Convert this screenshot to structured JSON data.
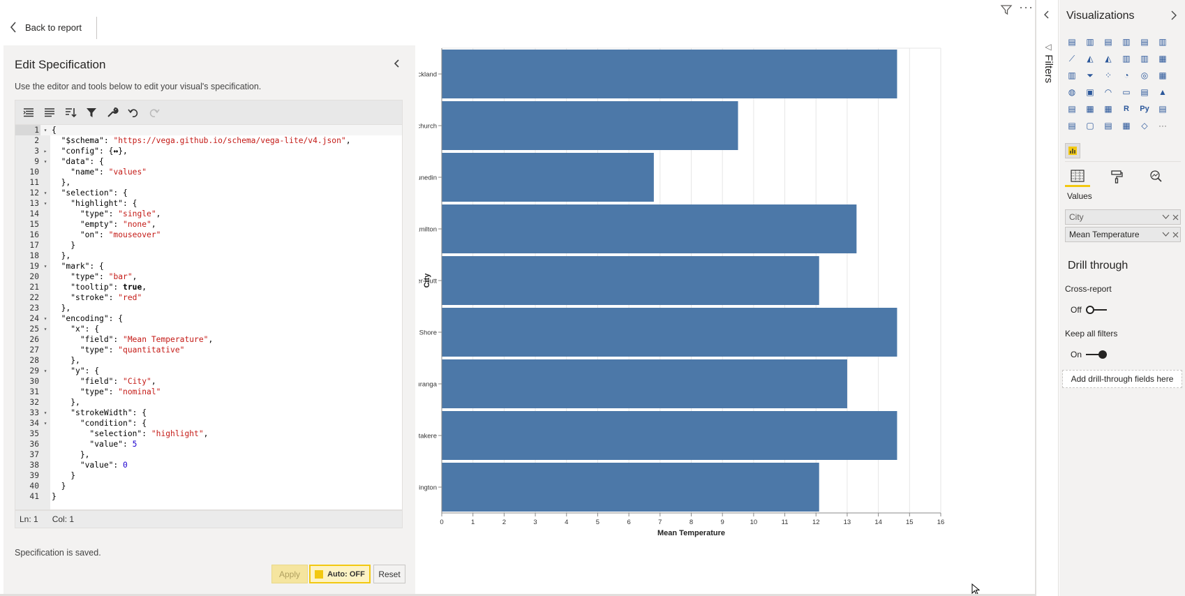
{
  "top_bar": {
    "back_label": "Back to report"
  },
  "editor": {
    "title": "Edit Specification",
    "description": "Use the editor and tools below to edit your visual's specification.",
    "lines": [
      {
        "n": "1",
        "fold": "▾",
        "indent": 0,
        "tokens": [
          {
            "t": "k",
            "v": "{"
          }
        ]
      },
      {
        "n": "2",
        "fold": "",
        "indent": 1,
        "tokens": [
          {
            "t": "k",
            "v": "\"$schema\": "
          },
          {
            "t": "s",
            "v": "\"https://vega.github.io/schema/vega-lite/v4.json\""
          },
          {
            "t": "k",
            "v": ","
          }
        ]
      },
      {
        "n": "3",
        "fold": "▸",
        "indent": 1,
        "tokens": [
          {
            "t": "k",
            "v": "\"config\": {"
          },
          {
            "t": "b",
            "v": "↔"
          },
          {
            "t": "k",
            "v": "},"
          }
        ]
      },
      {
        "n": "9",
        "fold": "▾",
        "indent": 1,
        "tokens": [
          {
            "t": "k",
            "v": "\"data\": {"
          }
        ]
      },
      {
        "n": "10",
        "fold": "",
        "indent": 2,
        "tokens": [
          {
            "t": "k",
            "v": "\"name\": "
          },
          {
            "t": "s",
            "v": "\"values\""
          }
        ]
      },
      {
        "n": "11",
        "fold": "",
        "indent": 1,
        "tokens": [
          {
            "t": "k",
            "v": "},"
          }
        ]
      },
      {
        "n": "12",
        "fold": "▾",
        "indent": 1,
        "tokens": [
          {
            "t": "k",
            "v": "\"selection\": {"
          }
        ]
      },
      {
        "n": "13",
        "fold": "▾",
        "indent": 2,
        "tokens": [
          {
            "t": "k",
            "v": "\"highlight\": {"
          }
        ]
      },
      {
        "n": "14",
        "fold": "",
        "indent": 3,
        "tokens": [
          {
            "t": "k",
            "v": "\"type\": "
          },
          {
            "t": "s",
            "v": "\"single\""
          },
          {
            "t": "k",
            "v": ","
          }
        ]
      },
      {
        "n": "15",
        "fold": "",
        "indent": 3,
        "tokens": [
          {
            "t": "k",
            "v": "\"empty\": "
          },
          {
            "t": "s",
            "v": "\"none\""
          },
          {
            "t": "k",
            "v": ","
          }
        ]
      },
      {
        "n": "16",
        "fold": "",
        "indent": 3,
        "tokens": [
          {
            "t": "k",
            "v": "\"on\": "
          },
          {
            "t": "s",
            "v": "\"mouseover\""
          }
        ]
      },
      {
        "n": "17",
        "fold": "",
        "indent": 2,
        "tokens": [
          {
            "t": "k",
            "v": "}"
          }
        ]
      },
      {
        "n": "18",
        "fold": "",
        "indent": 1,
        "tokens": [
          {
            "t": "k",
            "v": "},"
          }
        ]
      },
      {
        "n": "19",
        "fold": "▾",
        "indent": 1,
        "tokens": [
          {
            "t": "k",
            "v": "\"mark\": {"
          }
        ]
      },
      {
        "n": "20",
        "fold": "",
        "indent": 2,
        "tokens": [
          {
            "t": "k",
            "v": "\"type\": "
          },
          {
            "t": "s",
            "v": "\"bar\""
          },
          {
            "t": "k",
            "v": ","
          }
        ]
      },
      {
        "n": "21",
        "fold": "",
        "indent": 2,
        "tokens": [
          {
            "t": "k",
            "v": "\"tooltip\": "
          },
          {
            "t": "b",
            "v": "true"
          },
          {
            "t": "k",
            "v": ","
          }
        ]
      },
      {
        "n": "22",
        "fold": "",
        "indent": 2,
        "tokens": [
          {
            "t": "k",
            "v": "\"stroke\": "
          },
          {
            "t": "s",
            "v": "\"red\""
          }
        ]
      },
      {
        "n": "23",
        "fold": "",
        "indent": 1,
        "tokens": [
          {
            "t": "k",
            "v": "},"
          }
        ]
      },
      {
        "n": "24",
        "fold": "▾",
        "indent": 1,
        "tokens": [
          {
            "t": "k",
            "v": "\"encoding\": {"
          }
        ]
      },
      {
        "n": "25",
        "fold": "▾",
        "indent": 2,
        "tokens": [
          {
            "t": "k",
            "v": "\"x\": {"
          }
        ]
      },
      {
        "n": "26",
        "fold": "",
        "indent": 3,
        "tokens": [
          {
            "t": "k",
            "v": "\"field\": "
          },
          {
            "t": "s",
            "v": "\"Mean Temperature\""
          },
          {
            "t": "k",
            "v": ","
          }
        ]
      },
      {
        "n": "27",
        "fold": "",
        "indent": 3,
        "tokens": [
          {
            "t": "k",
            "v": "\"type\": "
          },
          {
            "t": "s",
            "v": "\"quantitative\""
          }
        ]
      },
      {
        "n": "28",
        "fold": "",
        "indent": 2,
        "tokens": [
          {
            "t": "k",
            "v": "},"
          }
        ]
      },
      {
        "n": "29",
        "fold": "▾",
        "indent": 2,
        "tokens": [
          {
            "t": "k",
            "v": "\"y\": {"
          }
        ]
      },
      {
        "n": "30",
        "fold": "",
        "indent": 3,
        "tokens": [
          {
            "t": "k",
            "v": "\"field\": "
          },
          {
            "t": "s",
            "v": "\"City\""
          },
          {
            "t": "k",
            "v": ","
          }
        ]
      },
      {
        "n": "31",
        "fold": "",
        "indent": 3,
        "tokens": [
          {
            "t": "k",
            "v": "\"type\": "
          },
          {
            "t": "s",
            "v": "\"nominal\""
          }
        ]
      },
      {
        "n": "32",
        "fold": "",
        "indent": 2,
        "tokens": [
          {
            "t": "k",
            "v": "},"
          }
        ]
      },
      {
        "n": "33",
        "fold": "▾",
        "indent": 2,
        "tokens": [
          {
            "t": "k",
            "v": "\"strokeWidth\": {"
          }
        ]
      },
      {
        "n": "34",
        "fold": "▾",
        "indent": 3,
        "tokens": [
          {
            "t": "k",
            "v": "\"condition\": {"
          }
        ]
      },
      {
        "n": "35",
        "fold": "",
        "indent": 4,
        "tokens": [
          {
            "t": "k",
            "v": "\"selection\": "
          },
          {
            "t": "s",
            "v": "\"highlight\""
          },
          {
            "t": "k",
            "v": ","
          }
        ]
      },
      {
        "n": "36",
        "fold": "",
        "indent": 4,
        "tokens": [
          {
            "t": "k",
            "v": "\"value\": "
          },
          {
            "t": "n",
            "v": "5"
          }
        ]
      },
      {
        "n": "37",
        "fold": "",
        "indent": 3,
        "tokens": [
          {
            "t": "k",
            "v": "},"
          }
        ]
      },
      {
        "n": "38",
        "fold": "",
        "indent": 3,
        "tokens": [
          {
            "t": "k",
            "v": "\"value\": "
          },
          {
            "t": "n",
            "v": "0"
          }
        ]
      },
      {
        "n": "39",
        "fold": "",
        "indent": 2,
        "tokens": [
          {
            "t": "k",
            "v": "}"
          }
        ]
      },
      {
        "n": "40",
        "fold": "",
        "indent": 1,
        "tokens": [
          {
            "t": "k",
            "v": "}"
          }
        ]
      },
      {
        "n": "41",
        "fold": "",
        "indent": 0,
        "tokens": [
          {
            "t": "k",
            "v": "}"
          }
        ]
      }
    ],
    "status": {
      "ln": "Ln: 1",
      "col": "Col: 1"
    },
    "saved_message": "Specification is saved.",
    "buttons": {
      "apply": "Apply",
      "auto": "Auto: OFF",
      "reset": "Reset"
    }
  },
  "chart_data": {
    "type": "bar",
    "orientation": "horizontal",
    "categories": [
      "Auckland",
      "Christchurch",
      "Dunedin",
      "Hamilton",
      "Lower Hutt",
      "North Shore",
      "Tauranga",
      "Waitakere",
      "Wellington"
    ],
    "values": [
      14.6,
      9.5,
      6.8,
      13.3,
      12.1,
      14.6,
      13.0,
      14.6,
      12.1
    ],
    "xlabel": "Mean Temperature",
    "ylabel": "City",
    "xlim": [
      0,
      16
    ],
    "xticks": [
      "0",
      "1",
      "2",
      "3",
      "4",
      "5",
      "6",
      "7",
      "8",
      "9",
      "10",
      "11",
      "12",
      "13",
      "14",
      "15",
      "16"
    ],
    "grid": true,
    "bar_color": "#4c78a8"
  },
  "filters": {
    "label": "Filters"
  },
  "viz_pane": {
    "title": "Visualizations",
    "values_label": "Values",
    "fields": [
      "City",
      "Mean Temperature"
    ],
    "drill_title": "Drill through",
    "cross_report_label": "Cross-report",
    "cross_report_state": "Off",
    "keep_filters_label": "Keep all filters",
    "keep_filters_state": "On",
    "drop_zone": "Add drill-through fields here",
    "icons": [
      "stacked-bar-icon",
      "stacked-column-icon",
      "clustered-bar-icon",
      "clustered-column-icon",
      "100-bar-icon",
      "100-column-icon",
      "line-icon",
      "area-icon",
      "stacked-area-icon",
      "line-column-icon",
      "line-clustered-icon",
      "ribbon-icon",
      "waterfall-icon",
      "funnel-icon",
      "scatter-icon",
      "pie-icon",
      "donut-icon",
      "treemap-icon",
      "map-icon",
      "filled-map-icon",
      "gauge-icon",
      "card-icon",
      "multi-card-icon",
      "kpi-icon",
      "slicer-icon",
      "table-icon",
      "matrix-icon",
      "r-visual-icon",
      "python-visual-icon",
      "key-influencers-icon",
      "decomposition-icon",
      "qa-icon",
      "narrative-icon",
      "paginated-icon",
      "power-apps-icon",
      "more-visuals-icon"
    ]
  }
}
